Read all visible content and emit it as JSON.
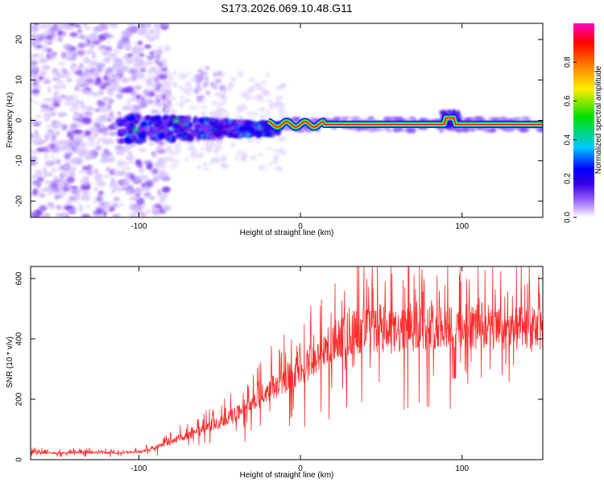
{
  "title": "S173.2026.069.10.48.G11",
  "chart_data": [
    {
      "type": "heatmap",
      "name": "spectrogram",
      "xlabel": "Height of straight line (km)",
      "ylabel": "Frequency (Hz)",
      "xlim": [
        -167,
        150
      ],
      "ylim": [
        -24,
        24
      ],
      "xticks": [
        -100,
        0,
        100
      ],
      "xtick_labels": [
        "-100",
        "0",
        "100"
      ],
      "yticks": [
        -20,
        -10,
        0,
        10,
        20
      ],
      "ytick_labels": [
        "-20",
        "-10",
        "0",
        "10",
        "20"
      ],
      "ridge_frequency_hz": -1,
      "colorbar": {
        "label": "Normalized spectral amplitude",
        "range": [
          0,
          1
        ],
        "ticks": [
          0.0,
          0.2,
          0.4,
          0.6,
          0.8
        ],
        "tick_labels": [
          "0.0",
          "0.2",
          "0.4",
          "0.6",
          "0.8"
        ],
        "colormap": [
          "#ffffff",
          "#a070ff",
          "#3a00e0",
          "#0000ff",
          "#00c8ff",
          "#00e000",
          "#ffee00",
          "#ff8000",
          "#ff0000",
          "#ff00c0"
        ]
      }
    },
    {
      "type": "line",
      "name": "snr",
      "xlabel": "Height of straight line (km)",
      "ylabel": "SNR (10 * v/v)",
      "xlim": [
        -167,
        150
      ],
      "ylim": [
        0,
        640
      ],
      "xticks": [
        -100,
        0,
        100
      ],
      "xtick_labels": [
        "-100",
        "0",
        "100"
      ],
      "yticks": [
        0,
        200,
        400,
        600
      ],
      "ytick_labels": [
        "0",
        "200",
        "400",
        "600"
      ],
      "color": "#ff2a2a",
      "series": [
        {
          "name": "SNR",
          "x": [
            -167,
            -150,
            -130,
            -110,
            -100,
            -90,
            -80,
            -70,
            -60,
            -50,
            -40,
            -30,
            -20,
            -10,
            0,
            10,
            20,
            30,
            40,
            50,
            60,
            70,
            80,
            90,
            100,
            110,
            120,
            130,
            140,
            150
          ],
          "y": [
            25,
            22,
            24,
            23,
            25,
            40,
            60,
            80,
            100,
            120,
            150,
            180,
            230,
            260,
            300,
            330,
            380,
            420,
            430,
            420,
            420,
            430,
            440,
            450,
            440,
            440,
            430,
            430,
            430,
            430
          ]
        }
      ]
    }
  ]
}
